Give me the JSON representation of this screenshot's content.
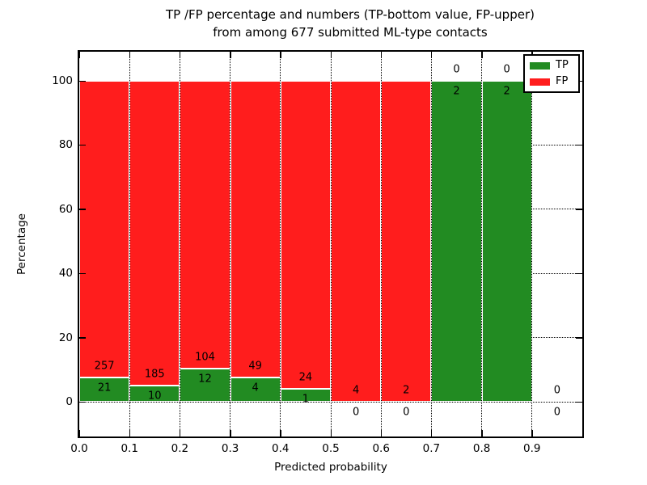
{
  "figure": {
    "title_line1": "TP /FP percentage and numbers (TP-bottom value, FP-upper)",
    "title_line2": "from among 677 submitted ML-type contacts"
  },
  "chart_data": {
    "type": "bar",
    "stacked": true,
    "title": "TP /FP percentage and numbers (TP-bottom value, FP-upper) from among 677 submitted ML-type contacts",
    "xlabel": "Predicted probability",
    "ylabel": "Percentage",
    "total_contacts": 677,
    "xlim": [
      0.0,
      1.0
    ],
    "ylim": [
      -10,
      110
    ],
    "x_tick_labels": [
      "0.0",
      "0.1",
      "0.2",
      "0.3",
      "0.4",
      "0.5",
      "0.6",
      "0.7",
      "0.8",
      "0.9"
    ],
    "y_tick_values": [
      0,
      20,
      40,
      60,
      80,
      100
    ],
    "grid": "dotted",
    "annotation_scheme": "FP count above TP/FP boundary, TP count below boundary",
    "legend": {
      "position": "upper-right",
      "entries": [
        {
          "label": "TP",
          "color": "#228B22"
        },
        {
          "label": "FP",
          "color": "#FF1D1D"
        }
      ]
    },
    "bins": [
      {
        "x_start": 0.0,
        "x_end": 0.1,
        "tp": 21,
        "fp": 257,
        "tp_pct": 7.55
      },
      {
        "x_start": 0.1,
        "x_end": 0.2,
        "tp": 10,
        "fp": 185,
        "tp_pct": 5.13
      },
      {
        "x_start": 0.2,
        "x_end": 0.3,
        "tp": 12,
        "fp": 104,
        "tp_pct": 10.34
      },
      {
        "x_start": 0.3,
        "x_end": 0.4,
        "tp": 4,
        "fp": 49,
        "tp_pct": 7.55
      },
      {
        "x_start": 0.4,
        "x_end": 0.5,
        "tp": 1,
        "fp": 24,
        "tp_pct": 4.0
      },
      {
        "x_start": 0.5,
        "x_end": 0.6,
        "tp": 0,
        "fp": 4,
        "tp_pct": 0.0
      },
      {
        "x_start": 0.6,
        "x_end": 0.7,
        "tp": 0,
        "fp": 2,
        "tp_pct": 0.0
      },
      {
        "x_start": 0.7,
        "x_end": 0.8,
        "tp": 2,
        "fp": 0,
        "tp_pct": 100.0
      },
      {
        "x_start": 0.8,
        "x_end": 0.9,
        "tp": 2,
        "fp": 0,
        "tp_pct": 100.0
      },
      {
        "x_start": 0.9,
        "x_end": 1.0,
        "tp": 0,
        "fp": 0,
        "tp_pct": null
      }
    ]
  }
}
